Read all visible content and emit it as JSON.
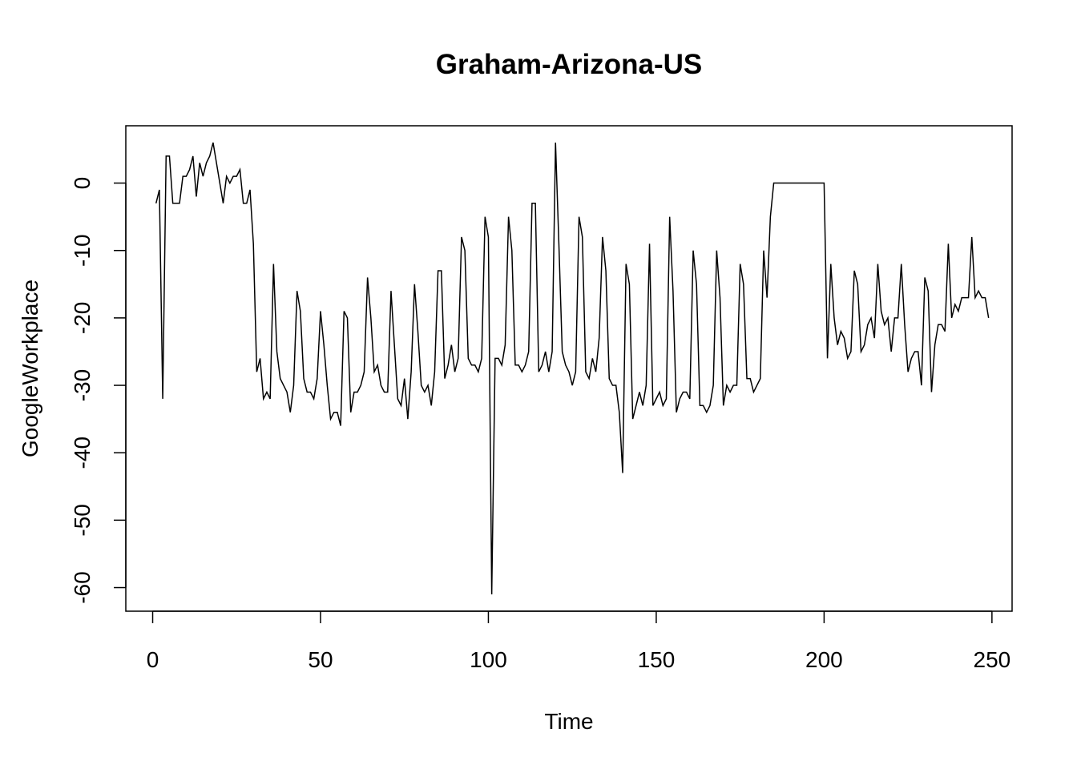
{
  "chart_data": {
    "type": "line",
    "title": "Graham-Arizona-US",
    "xlabel": "Time",
    "ylabel": "GoogleWorkplace",
    "xlim": [
      -8,
      256
    ],
    "ylim": [
      -63.5,
      8.5
    ],
    "x_ticks": [
      0,
      50,
      100,
      150,
      200,
      250
    ],
    "y_ticks": [
      0,
      -10,
      -20,
      -30,
      -40,
      -50,
      -60
    ],
    "grid": false,
    "legend": "none",
    "line_color": "#000000",
    "series": [
      {
        "x_start": 1,
        "values": [
          -3,
          -1,
          -32,
          4,
          4,
          -3,
          -3,
          -3,
          1,
          1,
          2,
          4,
          -2,
          3,
          1,
          3,
          4,
          6,
          3,
          0,
          -3,
          1,
          0,
          1,
          1,
          2,
          -3,
          -3,
          -1,
          -9,
          -28,
          -26,
          -32,
          -31,
          -32,
          -12,
          -25,
          -29,
          -30,
          -31,
          -34,
          -30,
          -16,
          -19,
          -29,
          -31,
          -31,
          -32,
          -29,
          -19,
          -24,
          -30,
          -35,
          -34,
          -34,
          -36,
          -19,
          -20,
          -34,
          -31,
          -31,
          -30,
          -28,
          -14,
          -20,
          -28,
          -27,
          -30,
          -31,
          -31,
          -16,
          -24,
          -32,
          -33,
          -29,
          -35,
          -28,
          -15,
          -22,
          -30,
          -31,
          -30,
          -33,
          -28,
          -13,
          -13,
          -29,
          -27,
          -24,
          -28,
          -26,
          -8,
          -10,
          -26,
          -27,
          -27,
          -28,
          -26,
          -5,
          -8,
          -61,
          -26,
          -26,
          -27,
          -24,
          -5,
          -10,
          -27,
          -27,
          -28,
          -27,
          -25,
          -3,
          -3,
          -28,
          -27,
          -25,
          -28,
          -25,
          6,
          -9,
          -25,
          -27,
          -28,
          -30,
          -28,
          -5,
          -8,
          -28,
          -29,
          -26,
          -28,
          -23,
          -8,
          -13,
          -29,
          -30,
          -30,
          -34,
          -43,
          -12,
          -15,
          -35,
          -33,
          -31,
          -33,
          -30,
          -9,
          -33,
          -32,
          -31,
          -33,
          -32,
          -5,
          -16,
          -34,
          -32,
          -31,
          -31,
          -32,
          -10,
          -15,
          -33,
          -33,
          -34,
          -33,
          -30,
          -10,
          -17,
          -33,
          -30,
          -31,
          -30,
          -30,
          -12,
          -15,
          -29,
          -29,
          -31,
          -30,
          -29,
          -10,
          -17,
          -5,
          0,
          0,
          0,
          0,
          0,
          0,
          0,
          0,
          0,
          0,
          0,
          0,
          0,
          0,
          0,
          0,
          -26,
          -12,
          -20,
          -24,
          -22,
          -23,
          -26,
          -25,
          -13,
          -15,
          -25,
          -24,
          -21,
          -20,
          -23,
          -12,
          -19,
          -21,
          -20,
          -25,
          -20,
          -20,
          -12,
          -21,
          -28,
          -26,
          -25,
          -25,
          -30,
          -14,
          -16,
          -31,
          -24,
          -21,
          -21,
          -22,
          -9,
          -20,
          -18,
          -19,
          -17,
          -17,
          -17,
          -8,
          -17,
          -16,
          -17,
          -17,
          -20
        ]
      }
    ]
  }
}
